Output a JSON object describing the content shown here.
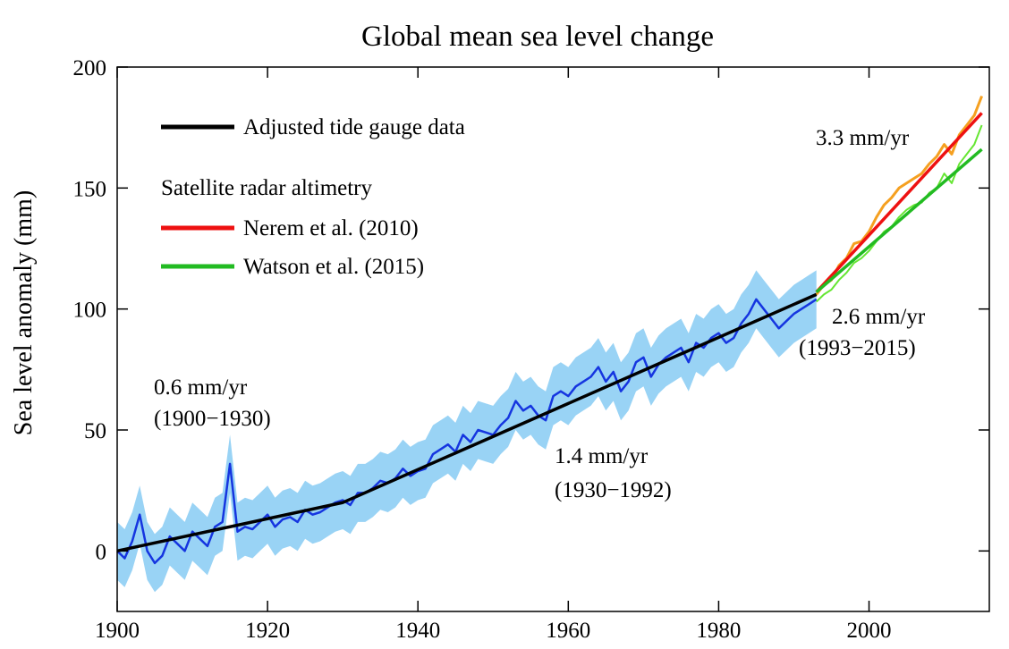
{
  "chart_data": {
    "type": "line",
    "title": "Global mean sea level change",
    "xlabel": "",
    "ylabel": "Sea level anomaly (mm)",
    "xlim": [
      1900,
      2016
    ],
    "ylim": [
      -25,
      200
    ],
    "x_ticks": [
      1900,
      1920,
      1940,
      1960,
      1980,
      2000
    ],
    "y_ticks": [
      0,
      50,
      100,
      150,
      200
    ],
    "grid": false,
    "legend_placement": "top-left",
    "legend": {
      "tide_gauge": "Adjusted tide gauge data",
      "satellite_heading": "Satellite radar altimetry",
      "nerem": "Nerem et al. (2010)",
      "watson": "Watson et al. (2015)"
    },
    "annotations": {
      "a1_rate": "0.6 mm/yr",
      "a1_period": "(1900−1930)",
      "a2_rate": "1.4 mm/yr",
      "a2_period": "(1930−1992)",
      "a3_rate": "3.3 mm/yr",
      "a4_rate": "2.6 mm/yr",
      "a4_period": "(1993−2015)"
    },
    "colors": {
      "tide_gauge_line": "#1535e0",
      "uncertainty_band": "#99d3f5",
      "trend_line": "#000000",
      "nerem_data": "#f5a020",
      "nerem_trend": "#ee1111",
      "watson_data": "#66e633",
      "watson_trend": "#22bb22"
    },
    "series": [
      {
        "name": "Adjusted tide gauge data",
        "x": [
          1900,
          1901,
          1902,
          1903,
          1904,
          1905,
          1906,
          1907,
          1908,
          1909,
          1910,
          1911,
          1912,
          1913,
          1914,
          1915,
          1916,
          1917,
          1918,
          1919,
          1920,
          1921,
          1922,
          1923,
          1924,
          1925,
          1926,
          1927,
          1928,
          1929,
          1930,
          1931,
          1932,
          1933,
          1934,
          1935,
          1936,
          1937,
          1938,
          1939,
          1940,
          1941,
          1942,
          1943,
          1944,
          1945,
          1946,
          1947,
          1948,
          1949,
          1950,
          1951,
          1952,
          1953,
          1954,
          1955,
          1956,
          1957,
          1958,
          1959,
          1960,
          1961,
          1962,
          1963,
          1964,
          1965,
          1966,
          1967,
          1968,
          1969,
          1970,
          1971,
          1972,
          1973,
          1974,
          1975,
          1976,
          1977,
          1978,
          1979,
          1980,
          1981,
          1982,
          1983,
          1984,
          1985,
          1986,
          1987,
          1988,
          1989,
          1990,
          1991,
          1992,
          1993
        ],
        "values": [
          0,
          -3,
          4,
          15,
          0,
          -5,
          -2,
          6,
          3,
          0,
          8,
          5,
          2,
          10,
          12,
          36,
          8,
          10,
          9,
          12,
          15,
          10,
          13,
          14,
          12,
          17,
          15,
          16,
          18,
          20,
          21,
          19,
          24,
          24,
          26,
          29,
          28,
          30,
          34,
          31,
          33,
          34,
          40,
          42,
          44,
          41,
          48,
          45,
          50,
          49,
          48,
          52,
          55,
          62,
          58,
          60,
          56,
          54,
          64,
          66,
          64,
          68,
          70,
          72,
          76,
          70,
          74,
          66,
          70,
          78,
          80,
          72,
          77,
          80,
          82,
          84,
          78,
          86,
          84,
          88,
          90,
          86,
          88,
          94,
          98,
          104,
          100,
          96,
          92,
          95,
          98,
          100,
          102,
          104
        ],
        "uncertainty_mm": 12
      },
      {
        "name": "Nerem et al. (2010)",
        "x": [
          1993,
          1994,
          1995,
          1996,
          1997,
          1998,
          1999,
          2000,
          2001,
          2002,
          2003,
          2004,
          2005,
          2006,
          2007,
          2008,
          2009,
          2010,
          2011,
          2012,
          2013,
          2014,
          2015
        ],
        "values": [
          106,
          110,
          112,
          118,
          121,
          127,
          128,
          132,
          138,
          143,
          146,
          150,
          152,
          154,
          156,
          160,
          163,
          168,
          164,
          172,
          176,
          180,
          188
        ]
      },
      {
        "name": "Watson et al. (2015)",
        "x": [
          1993,
          1994,
          1995,
          1996,
          1997,
          1998,
          1999,
          2000,
          2001,
          2002,
          2003,
          2004,
          2005,
          2006,
          2007,
          2008,
          2009,
          2010,
          2011,
          2012,
          2013,
          2014,
          2015
        ],
        "values": [
          103,
          106,
          108,
          112,
          115,
          119,
          121,
          124,
          128,
          132,
          134,
          138,
          141,
          143,
          144,
          148,
          150,
          156,
          152,
          160,
          164,
          168,
          176
        ]
      }
    ],
    "trends": [
      {
        "label": "0.6 mm/yr",
        "x": [
          1900,
          1930
        ],
        "y": [
          0,
          20
        ]
      },
      {
        "label": "1.4 mm/yr",
        "x": [
          1930,
          1993
        ],
        "y": [
          20,
          106
        ]
      },
      {
        "label": "3.3 mm/yr",
        "x": [
          1993,
          2015
        ],
        "y": [
          107,
          181
        ]
      },
      {
        "label": "2.6 mm/yr",
        "x": [
          1993,
          2015
        ],
        "y": [
          107,
          166
        ]
      }
    ]
  }
}
